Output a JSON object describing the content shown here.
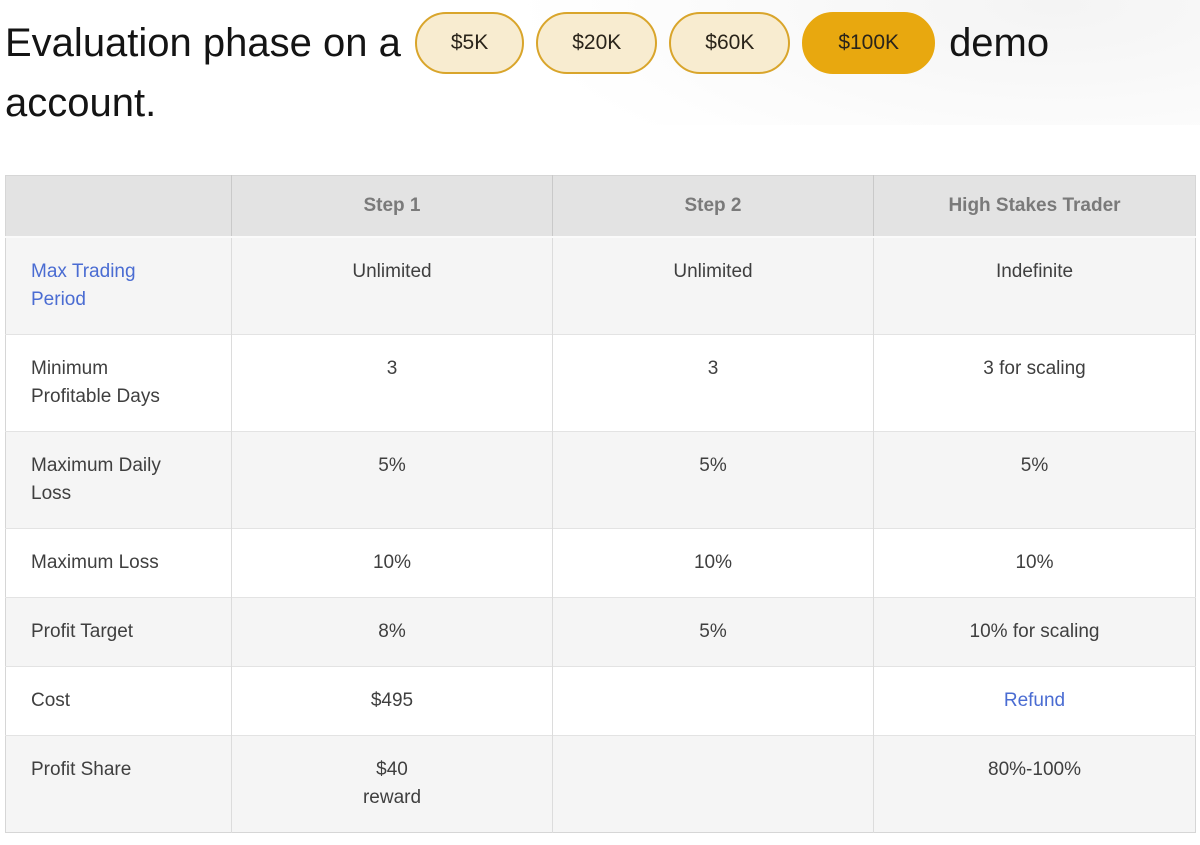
{
  "heading": {
    "line1_prefix": "Evaluation phase on a",
    "line1_suffix": "demo",
    "line2": "account.",
    "pills": [
      {
        "label": "$5K",
        "selected": false
      },
      {
        "label": "$20K",
        "selected": false
      },
      {
        "label": "$60K",
        "selected": false
      },
      {
        "label": "$100K",
        "selected": true
      }
    ]
  },
  "colors": {
    "pill_background": "#f8ecd0",
    "pill_border": "#d9a52b",
    "pill_selected_background": "#e8a80f",
    "link": "#4a6cd2",
    "header_background": "#e3e3e3",
    "header_text": "#7a7a7a",
    "row_shaded_background": "#f5f5f5",
    "body_text": "#3f3f3f"
  },
  "table": {
    "columns": [
      "",
      "Step 1",
      "Step 2",
      "High Stakes Trader"
    ],
    "rows": [
      {
        "label": {
          "text": "Max Trading Period",
          "link": true
        },
        "cells": [
          {
            "text": "Unlimited",
            "link": false
          },
          {
            "text": "Unlimited",
            "link": false
          },
          {
            "text": "Indefinite",
            "link": false
          }
        ]
      },
      {
        "label": {
          "text": "Minimum Profitable Days",
          "link": false
        },
        "cells": [
          {
            "text": "3",
            "link": false
          },
          {
            "text": "3",
            "link": false
          },
          {
            "text": "3 for scaling",
            "link": false
          }
        ]
      },
      {
        "label": {
          "text": "Maximum Daily Loss",
          "link": false
        },
        "cells": [
          {
            "text": "5%",
            "link": false
          },
          {
            "text": "5%",
            "link": false
          },
          {
            "text": "5%",
            "link": false
          }
        ]
      },
      {
        "label": {
          "text": "Maximum Loss",
          "link": false
        },
        "cells": [
          {
            "text": "10%",
            "link": false
          },
          {
            "text": "10%",
            "link": false
          },
          {
            "text": "10%",
            "link": false
          }
        ]
      },
      {
        "label": {
          "text": "Profit Target",
          "link": false
        },
        "cells": [
          {
            "text": "8%",
            "link": false
          },
          {
            "text": "5%",
            "link": false
          },
          {
            "text": "10% for scaling",
            "link": false
          }
        ]
      },
      {
        "label": {
          "text": "Cost",
          "link": false
        },
        "cells": [
          {
            "text": "$495",
            "link": false
          },
          {
            "text": "",
            "link": false
          },
          {
            "text": "Refund",
            "link": true
          }
        ]
      },
      {
        "label": {
          "text": "Profit Share",
          "link": false
        },
        "cells": [
          {
            "text": "$40\nreward",
            "link": false
          },
          {
            "text": "",
            "link": false
          },
          {
            "text": "80%-100%",
            "link": false
          }
        ]
      }
    ]
  }
}
